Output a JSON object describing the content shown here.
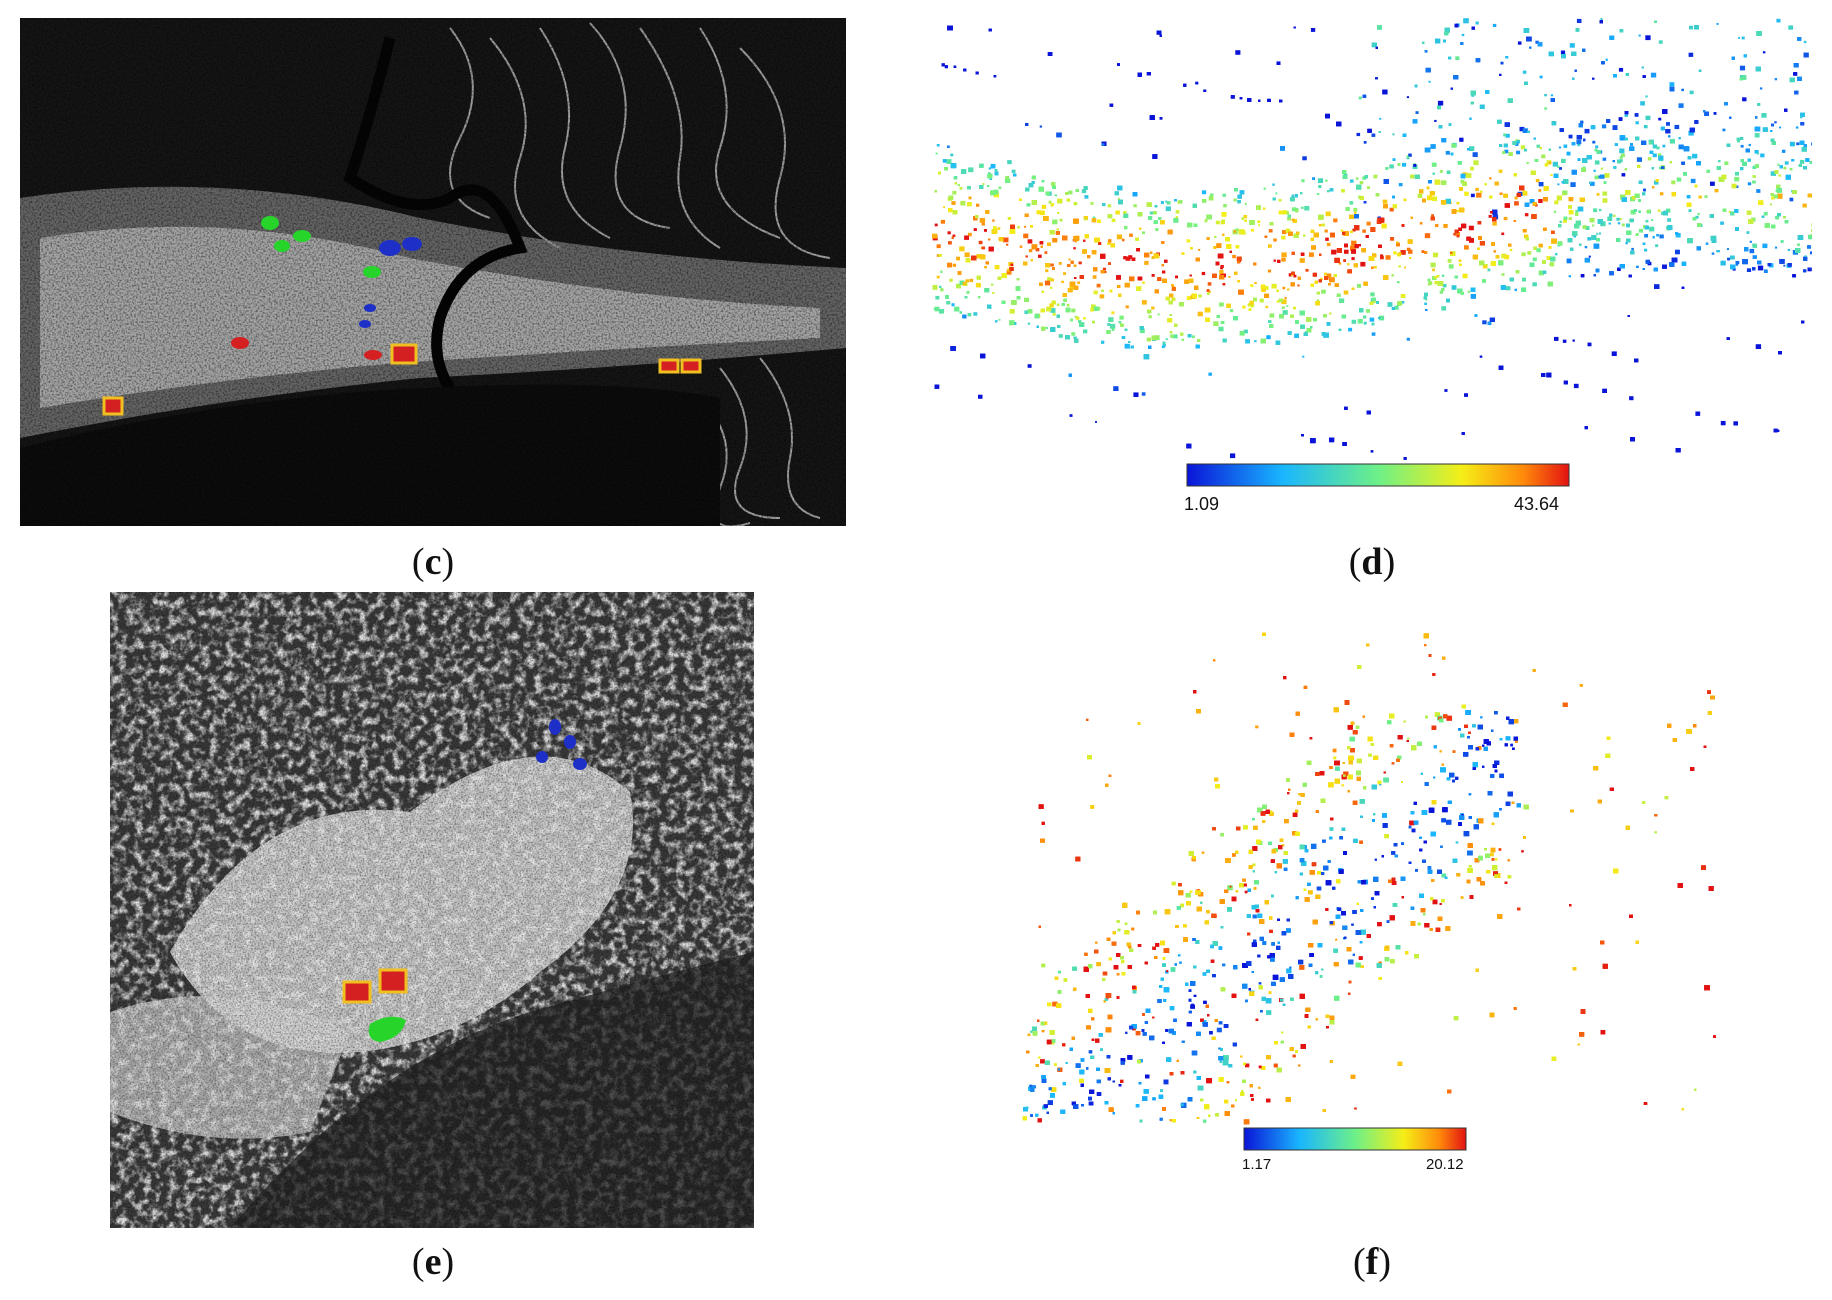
{
  "panels": [
    {
      "id": "c",
      "label": "c",
      "kind": "sar"
    },
    {
      "id": "d",
      "label": "d",
      "kind": "heatmap",
      "colorbar": {
        "min_label": "1.09",
        "max_label": "43.64"
      }
    },
    {
      "id": "e",
      "label": "e",
      "kind": "sar"
    },
    {
      "id": "f",
      "label": "f",
      "kind": "heatmap",
      "colorbar": {
        "min_label": "1.17",
        "max_label": "20.12"
      }
    }
  ],
  "colors": {
    "red_marker": "#d42020",
    "blue_marker": "#1e2fc8",
    "green_marker": "#26d42a",
    "yellow_box": "#f0c020"
  }
}
